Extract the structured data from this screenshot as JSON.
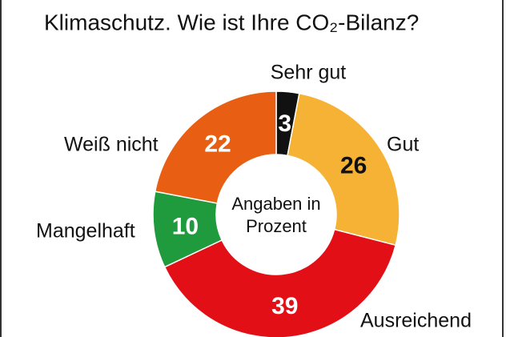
{
  "chart_data": {
    "type": "donut",
    "title": "Klimaschutz. Wie ist Ihre CO₂-Bilanz?",
    "center_label": [
      "Angaben in",
      "Prozent"
    ],
    "categories": [
      "Sehr gut",
      "Gut",
      "Ausreichend",
      "Mangelhaft",
      "Weiß nicht"
    ],
    "values": [
      3,
      26,
      39,
      10,
      22
    ],
    "colors": [
      "#111111",
      "#f6b234",
      "#e20f17",
      "#1f9a3c",
      "#e85e12"
    ]
  }
}
